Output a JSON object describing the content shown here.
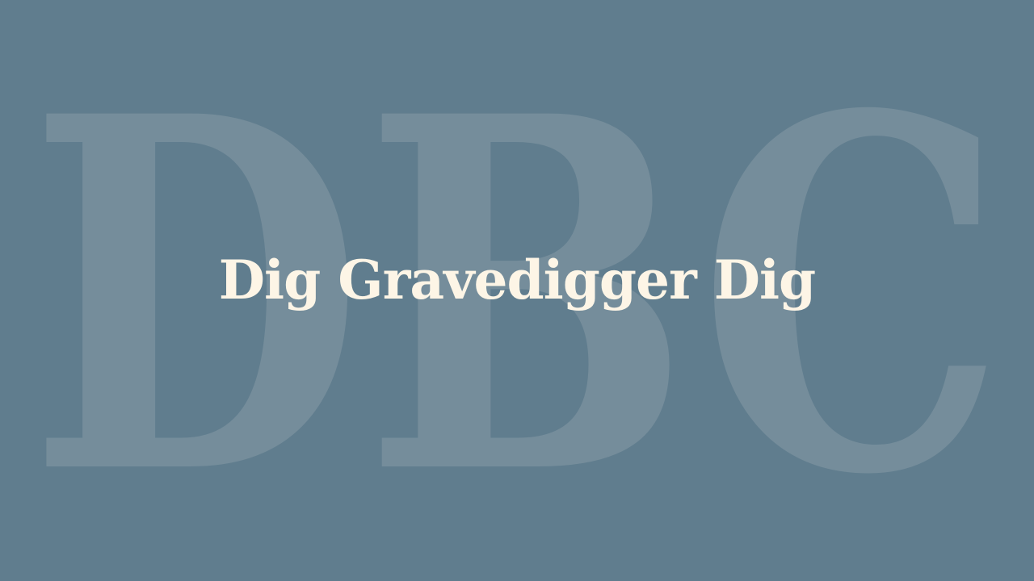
{
  "background_monogram": "DBC",
  "title": "Dig Gravedigger Dig",
  "colors": {
    "background": "#607d8e",
    "monogram": "#758d9b",
    "title": "#fdf5e6"
  }
}
